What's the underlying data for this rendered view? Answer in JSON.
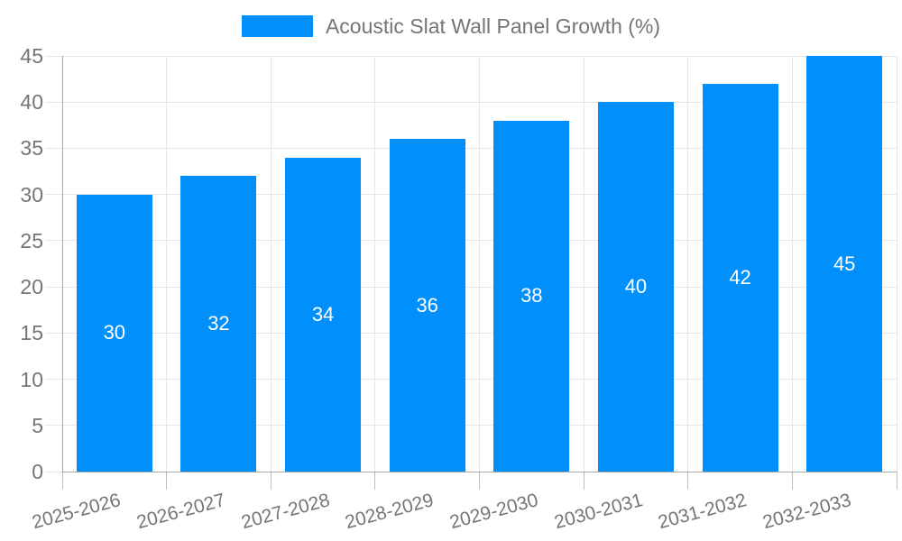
{
  "chart_data": {
    "type": "bar",
    "title": "Acoustic Slat Wall Panel Growth (%)",
    "legend": {
      "position": "top",
      "label": "Acoustic Slat Wall Panel Growth (%)"
    },
    "categories": [
      "2025-2026",
      "2026-2027",
      "2027-2028",
      "2028-2029",
      "2029-2030",
      "2030-2031",
      "2031-2032",
      "2032-2033"
    ],
    "values": [
      30,
      32,
      34,
      36,
      38,
      40,
      42,
      45
    ],
    "xlabel": "",
    "ylabel": "",
    "ylim": [
      0,
      45
    ],
    "ytick_step": 5,
    "yticks": [
      0,
      5,
      10,
      15,
      20,
      25,
      30,
      35,
      40,
      45
    ],
    "grid": true,
    "data_labels_inside_bars": true,
    "x_label_rotation_deg": -15,
    "colors": {
      "bar": "#008FFB",
      "bar_value_text": "#ffffff",
      "axis_text": "#757575",
      "legend_text": "#757575",
      "gridline": "#e6e6e6",
      "axis_line": "#a6a6a6",
      "tick": "#bdbdbd",
      "background": "#ffffff"
    }
  }
}
